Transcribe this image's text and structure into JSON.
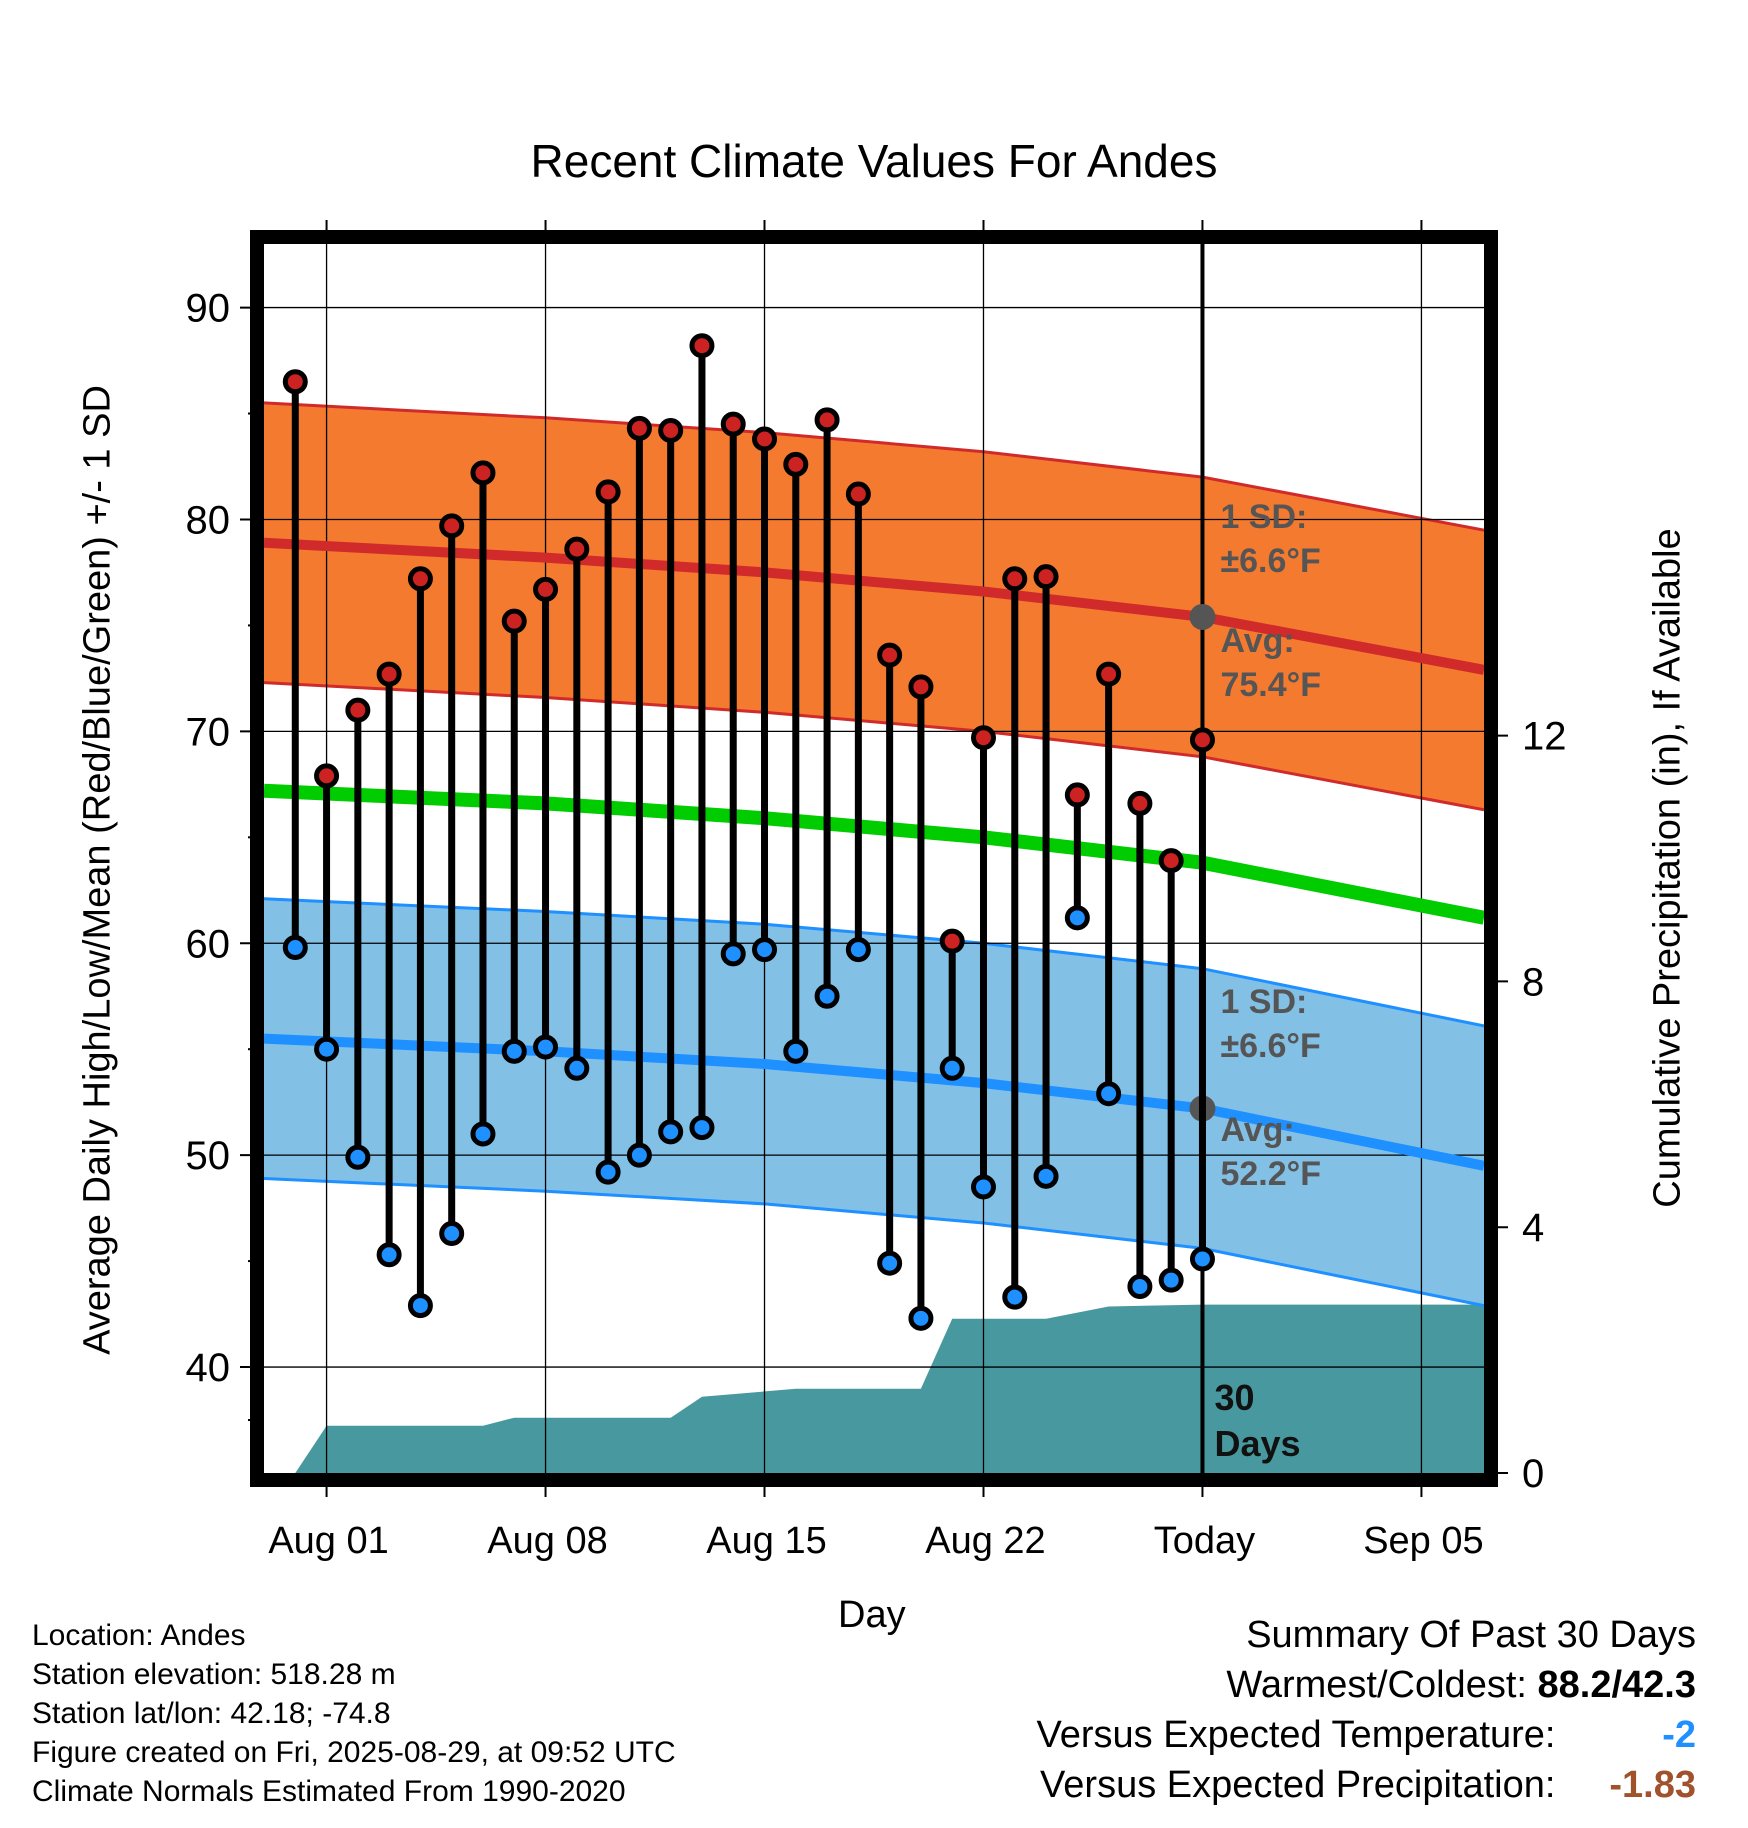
{
  "chart_data": {
    "type": "line",
    "title": "Recent Climate Values For Andes",
    "xlabel": "Day",
    "ylabel": "Average Daily High/Low/Mean (Red/Blue/Green) +/- 1 SD",
    "y2label": "Cumulative Precipitation (in), If Available",
    "x_ticks": [
      "Aug 01",
      "Aug 08",
      "Aug 15",
      "Aug 22",
      "Today",
      "Sep 05"
    ],
    "xlim": [
      "2025-07-30",
      "2025-09-07"
    ],
    "ylim": [
      35,
      93
    ],
    "y_ticks": [
      40,
      50,
      60,
      70,
      80,
      90
    ],
    "y2lim": [
      0,
      20
    ],
    "y2_ticks": [
      0,
      4,
      8,
      12
    ],
    "grid": true,
    "days": [
      "2025-07-31",
      "2025-08-01",
      "2025-08-02",
      "2025-08-03",
      "2025-08-04",
      "2025-08-05",
      "2025-08-06",
      "2025-08-07",
      "2025-08-08",
      "2025-08-09",
      "2025-08-10",
      "2025-08-11",
      "2025-08-12",
      "2025-08-13",
      "2025-08-14",
      "2025-08-15",
      "2025-08-16",
      "2025-08-17",
      "2025-08-18",
      "2025-08-19",
      "2025-08-20",
      "2025-08-21",
      "2025-08-22",
      "2025-08-23",
      "2025-08-24",
      "2025-08-25",
      "2025-08-26",
      "2025-08-27",
      "2025-08-28",
      "2025-08-29"
    ],
    "series": [
      {
        "name": "High",
        "values": [
          86.5,
          67.9,
          71.0,
          72.7,
          77.2,
          79.7,
          82.2,
          75.2,
          76.7,
          78.6,
          81.3,
          84.3,
          84.2,
          88.2,
          84.5,
          83.8,
          82.6,
          84.7,
          81.2,
          73.6,
          72.1,
          60.1,
          69.7,
          77.2,
          77.3,
          67.0,
          72.7,
          66.6,
          63.9,
          69.6
        ]
      },
      {
        "name": "Low",
        "values": [
          59.8,
          55.0,
          49.9,
          45.3,
          42.9,
          46.3,
          51.0,
          54.9,
          55.1,
          54.1,
          49.2,
          50.0,
          51.1,
          51.3,
          59.5,
          59.7,
          54.9,
          57.5,
          59.7,
          44.9,
          42.3,
          54.1,
          48.5,
          43.3,
          49.0,
          61.2,
          52.9,
          43.8,
          44.1,
          45.1
        ]
      }
    ],
    "normals": {
      "dates": [
        "2025-07-30",
        "2025-08-08",
        "2025-08-15",
        "2025-08-22",
        "2025-08-29",
        "2025-09-07"
      ],
      "high_mean": [
        78.9,
        78.2,
        77.5,
        76.6,
        75.4,
        72.9
      ],
      "low_mean": [
        55.5,
        54.9,
        54.3,
        53.4,
        52.2,
        49.5
      ],
      "mean": [
        67.2,
        66.6,
        65.9,
        65.0,
        63.8,
        61.2
      ],
      "high_sd": 6.6,
      "low_sd": 6.6
    },
    "precip": {
      "dates": [
        "2025-07-31",
        "2025-08-01",
        "2025-08-06",
        "2025-08-07",
        "2025-08-12",
        "2025-08-13",
        "2025-08-16",
        "2025-08-20",
        "2025-08-21",
        "2025-08-24",
        "2025-08-26",
        "2025-08-29",
        "2025-09-07"
      ],
      "values": [
        0.0,
        0.77,
        0.77,
        0.9,
        0.9,
        1.24,
        1.37,
        1.37,
        2.51,
        2.51,
        2.71,
        2.74,
        2.74
      ]
    },
    "annotations": {
      "high_sd_label_1": "1 SD:",
      "high_sd_label_2": "±6.6°F",
      "high_avg_label_1": "Avg:",
      "high_avg_label_2": "75.4°F",
      "low_sd_label_1": "1 SD:",
      "low_sd_label_2": "±6.6°F",
      "low_avg_label_1": "Avg:",
      "low_avg_label_2": "52.2°F",
      "days_label_1": "30",
      "days_label_2": "Days"
    },
    "colors": {
      "high_band": "#f47a30",
      "high_line": "#d02a2a",
      "low_band": "#82c0e6",
      "low_line": "#1e90ff",
      "mean_line": "#00cc00",
      "precip": "#48999f",
      "high_dot": "#cc2222",
      "low_dot": "#1e90ff",
      "annotation": "#555555"
    }
  },
  "metadata": {
    "location": "Location: Andes",
    "elevation": "Station elevation: 518.28 m",
    "latlon": "Station lat/lon: 42.18; -74.8",
    "created": "Figure created on Fri, 2025-08-29, at 09:52 UTC",
    "normals": "Climate Normals Estimated From 1990-2020"
  },
  "summary": {
    "heading": "Summary Of Past 30 Days",
    "warm_cold_label": "Warmest/Coldest:",
    "warm_cold_value": "88.2/42.3",
    "temp_label": "Versus Expected Temperature:",
    "temp_value": "-2",
    "precip_label": "Versus Expected Precipitation:",
    "precip_value": "-1.83"
  }
}
